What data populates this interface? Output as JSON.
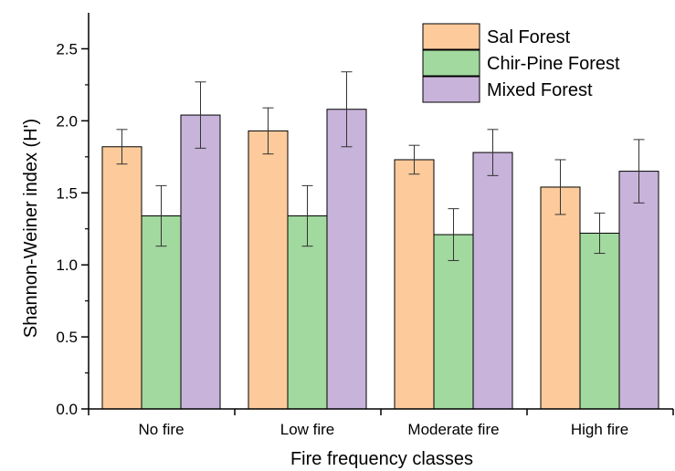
{
  "chart_data": {
    "type": "bar",
    "title": "",
    "xlabel": "Fire frequency classes",
    "ylabel": "Shannon-Weiner index (H')",
    "categories": [
      "No fire",
      "Low fire",
      "Moderate fire",
      "High fire"
    ],
    "ylim": [
      0,
      2.75
    ],
    "yticks": [
      0.0,
      0.5,
      1.0,
      1.5,
      2.0,
      2.5
    ],
    "ytick_labels": [
      "0.0",
      "0.5",
      "1.0",
      "1.5",
      "2.0",
      "2.5"
    ],
    "grid": false,
    "legend_position": "top-right",
    "series": [
      {
        "name": "Sal Forest",
        "color": "#FDCB9B",
        "values": [
          1.82,
          1.93,
          1.73,
          1.54
        ],
        "errors": [
          0.12,
          0.16,
          0.1,
          0.19
        ]
      },
      {
        "name": "Chir-Pine Forest",
        "color": "#A2D99F",
        "values": [
          1.34,
          1.34,
          1.21,
          1.22
        ],
        "errors": [
          0.21,
          0.21,
          0.18,
          0.14
        ]
      },
      {
        "name": "Mixed Forest",
        "color": "#C8B3DA",
        "values": [
          2.04,
          2.08,
          1.78,
          1.65
        ],
        "errors": [
          0.23,
          0.26,
          0.16,
          0.22
        ]
      }
    ]
  }
}
